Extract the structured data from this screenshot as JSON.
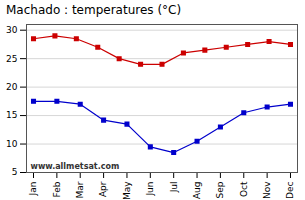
{
  "chart_data": {
    "type": "line",
    "title": "Machado : temperatures (°C)",
    "xlim": [
      -0.3,
      11.3
    ],
    "xticks": [
      {
        "value": 0,
        "label": "Jan"
      },
      {
        "value": 1,
        "label": "Feb"
      },
      {
        "value": 2,
        "label": "Mar"
      },
      {
        "value": 3,
        "label": "Apr"
      },
      {
        "value": 4,
        "label": "May"
      },
      {
        "value": 5,
        "label": "Jun"
      },
      {
        "value": 6,
        "label": "Jul"
      },
      {
        "value": 7,
        "label": "Aug"
      },
      {
        "value": 8,
        "label": "Sep"
      },
      {
        "value": 9,
        "label": "Oct"
      },
      {
        "value": 10,
        "label": "Nov"
      },
      {
        "value": 11,
        "label": "Dec"
      }
    ],
    "ylim": [
      5,
      31
    ],
    "yticks": [
      5,
      10,
      15,
      20,
      25,
      30
    ],
    "grid": "y",
    "annotations": [
      "www.allmetsat.com"
    ],
    "series": [
      {
        "color": "#cc0000",
        "marker": "square",
        "x": [
          0,
          0.9166666666666666,
          1.8333333333333333,
          2.75,
          3.6666666666666665,
          4.583333333333333,
          5.5,
          6.416666666666667,
          7.333333333333333,
          8.25,
          9.166666666666666,
          10.083333333333334,
          11
        ],
        "values": [
          28.5,
          29.0,
          28.5,
          27.0,
          25.0,
          24.0,
          24.0,
          26.0,
          26.5,
          27.0,
          27.5,
          28.0,
          27.5
        ]
      },
      {
        "color": "#0000cc",
        "marker": "square",
        "x": [
          0,
          1,
          2,
          3,
          4,
          5,
          6,
          7,
          8,
          9,
          10,
          11
        ],
        "values": [
          17.5,
          17.5,
          17.0,
          14.2,
          13.5,
          9.5,
          8.5,
          10.5,
          13.0,
          15.5,
          16.5,
          17.0
        ]
      }
    ]
  }
}
